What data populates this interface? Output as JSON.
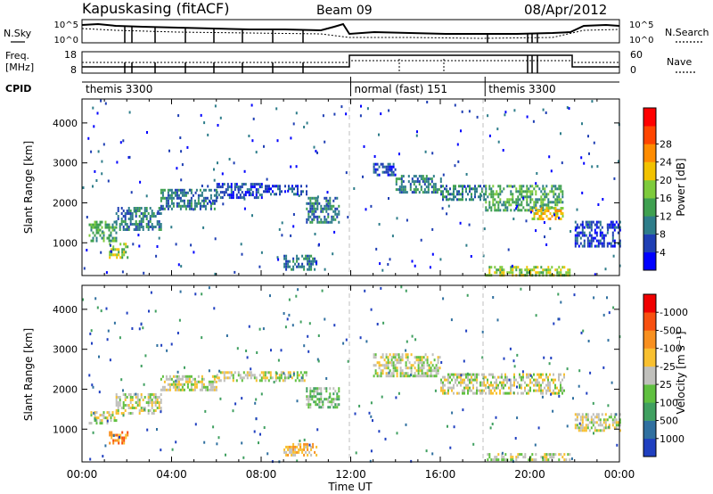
{
  "header": {
    "station": "Kapuskasing (fitACF)",
    "beam": "Beam 09",
    "date": "08/Apr/2012"
  },
  "strip_nsky": {
    "label": "N.Sky",
    "tick_top": "10^5",
    "tick_bottom": "10^0",
    "right_label": "N.Search",
    "right_tick_top": "10^5",
    "right_tick_bottom": "10^0"
  },
  "strip_freq": {
    "label_line1": "Freq.",
    "label_line2": "[MHz]",
    "tick_top": "18",
    "tick_bottom": "8",
    "right_label": "Nave",
    "right_tick_top": "60",
    "right_tick_bottom": "0"
  },
  "cpid": {
    "label": "CPID",
    "segments": [
      {
        "label": "themis 3300",
        "start": 0,
        "end": 12
      },
      {
        "label": "normal (fast) 151",
        "start": 12,
        "end": 18
      },
      {
        "label": "themis 3300",
        "start": 18,
        "end": 24
      }
    ]
  },
  "chart_data": [
    {
      "type": "heatmap",
      "quantity": "power",
      "ylabel": "Slant Range [km]",
      "y_ticks": [
        1000,
        2000,
        3000,
        4000
      ],
      "ylim": [
        180,
        4600
      ],
      "xlim": [
        0,
        24
      ],
      "colorbar": {
        "label": "Power [dB]",
        "tick_labels": [
          "4",
          "8",
          "12",
          "16",
          "20",
          "24",
          "28"
        ],
        "colors": [
          "#0000ff",
          "#1f3fb4",
          "#2e7d8a",
          "#3fa050",
          "#7ecb3c",
          "#f2c200",
          "#ff8c00",
          "#ff4500",
          "#ff0000"
        ]
      },
      "echo_bands": [
        {
          "t0": 0.3,
          "t1": 1.5,
          "r0": 1050,
          "r1": 1550,
          "level": 3
        },
        {
          "t0": 1.2,
          "t1": 2.0,
          "r0": 650,
          "r1": 1000,
          "level": 4
        },
        {
          "t0": 1.5,
          "t1": 3.5,
          "r0": 1300,
          "r1": 1900,
          "level": 2
        },
        {
          "t0": 3.5,
          "t1": 6.0,
          "r0": 1850,
          "r1": 2350,
          "level": 2
        },
        {
          "t0": 6.0,
          "t1": 8.0,
          "r0": 2150,
          "r1": 2500,
          "level": 1
        },
        {
          "t0": 8.0,
          "t1": 10.0,
          "r0": 2200,
          "r1": 2450,
          "level": 1
        },
        {
          "t0": 10.0,
          "t1": 11.5,
          "r0": 1500,
          "r1": 2150,
          "level": 2
        },
        {
          "t0": 9.0,
          "t1": 10.5,
          "r0": 350,
          "r1": 700,
          "level": 2
        },
        {
          "t0": 13.0,
          "t1": 14.0,
          "r0": 2700,
          "r1": 3000,
          "level": 1
        },
        {
          "t0": 14.0,
          "t1": 16.0,
          "r0": 2250,
          "r1": 2700,
          "level": 2
        },
        {
          "t0": 16.0,
          "t1": 18.0,
          "r0": 2050,
          "r1": 2450,
          "level": 2
        },
        {
          "t0": 18.0,
          "t1": 21.5,
          "r0": 1800,
          "r1": 2450,
          "level": 3
        },
        {
          "t0": 20.0,
          "t1": 21.5,
          "r0": 1600,
          "r1": 1900,
          "level": 5
        },
        {
          "t0": 18.0,
          "t1": 21.8,
          "r0": 200,
          "r1": 420,
          "level": 4
        },
        {
          "t0": 22.0,
          "t1": 24.0,
          "r0": 900,
          "r1": 1550,
          "level": 1
        }
      ]
    },
    {
      "type": "heatmap",
      "quantity": "velocity",
      "xlabel": "Time UT",
      "ylabel": "Slant Range [km]",
      "y_ticks": [
        1000,
        2000,
        3000,
        4000
      ],
      "ylim": [
        180,
        4600
      ],
      "xlim": [
        0,
        24
      ],
      "x_tick_labels": [
        "00:00",
        "04:00",
        "08:00",
        "12:00",
        "16:00",
        "20:00",
        "00:00"
      ],
      "colorbar": {
        "label": "Velocity [m s⁻¹]",
        "tick_labels": [
          "1000",
          "500",
          "100",
          "25",
          "-25",
          "-100",
          "-500",
          "-1000"
        ],
        "colors": [
          "#2040c0",
          "#3070a0",
          "#40a060",
          "#60c040",
          "#c0c0bc",
          "#f8c030",
          "#f89020",
          "#f85010",
          "#f00000"
        ]
      },
      "echo_bands": [
        {
          "t0": 0.3,
          "t1": 1.5,
          "r0": 1150,
          "r1": 1450,
          "level": 4
        },
        {
          "t0": 1.2,
          "t1": 2.0,
          "r0": 650,
          "r1": 950,
          "level": 6
        },
        {
          "t0": 1.5,
          "t1": 3.5,
          "r0": 1400,
          "r1": 1900,
          "level": 4
        },
        {
          "t0": 3.5,
          "t1": 6.0,
          "r0": 1950,
          "r1": 2350,
          "level": 4
        },
        {
          "t0": 6.0,
          "t1": 10.0,
          "r0": 2200,
          "r1": 2450,
          "level": 4
        },
        {
          "t0": 10.0,
          "t1": 11.5,
          "r0": 1550,
          "r1": 2050,
          "level": 3
        },
        {
          "t0": 9.0,
          "t1": 10.5,
          "r0": 380,
          "r1": 650,
          "level": 5
        },
        {
          "t0": 13.0,
          "t1": 16.0,
          "r0": 2300,
          "r1": 2900,
          "level": 4
        },
        {
          "t0": 16.0,
          "t1": 21.5,
          "r0": 1900,
          "r1": 2400,
          "level": 4
        },
        {
          "t0": 18.0,
          "t1": 21.8,
          "r0": 220,
          "r1": 400,
          "level": 4
        },
        {
          "t0": 22.0,
          "t1": 24.0,
          "r0": 950,
          "r1": 1400,
          "level": 4
        }
      ]
    }
  ]
}
